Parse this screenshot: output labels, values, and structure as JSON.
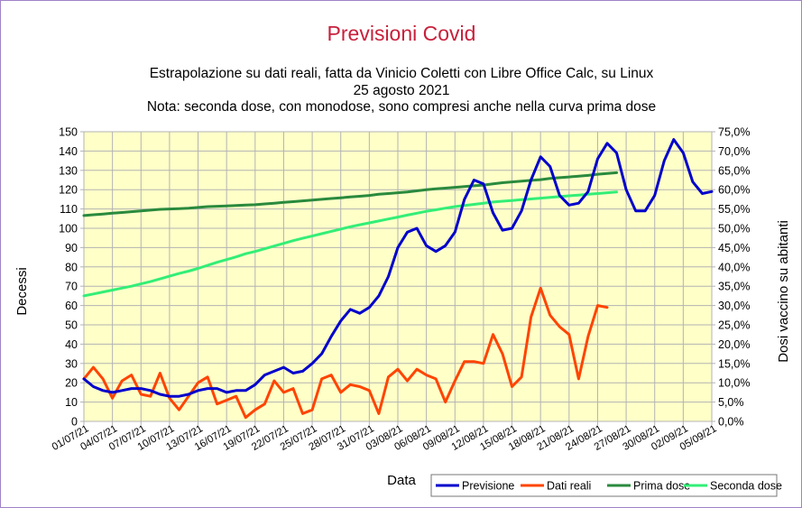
{
  "chart_data": {
    "type": "line",
    "title": "Previsioni Covid",
    "subtitle_lines": [
      "Estrapolazione su dati reali, fatta da Vinicio Coletti con Libre Office Calc, su Linux",
      "25 agosto 2021",
      "Nota: seconda dose, con monodose, sono compresi anche nella curva prima dose"
    ],
    "xlabel": "Data",
    "ylabel": "Decessi",
    "y2label": "Dosi vaccino su abitanti",
    "ylim": [
      0,
      150
    ],
    "y2lim": [
      0,
      75
    ],
    "yticks": [
      "0",
      "10",
      "20",
      "30",
      "40",
      "50",
      "60",
      "70",
      "80",
      "90",
      "100",
      "110",
      "120",
      "130",
      "140",
      "150"
    ],
    "y2ticks": [
      "0,0%",
      "5,0%",
      "10,0%",
      "15,0%",
      "20,0%",
      "25,0%",
      "30,0%",
      "35,0%",
      "40,0%",
      "45,0%",
      "50,0%",
      "55,0%",
      "60,0%",
      "65,0%",
      "70,0%",
      "75,0%"
    ],
    "xticks": [
      "01/07/21",
      "04/07/21",
      "07/07/21",
      "10/07/21",
      "13/07/21",
      "16/07/21",
      "19/07/21",
      "22/07/21",
      "25/07/21",
      "28/07/21",
      "31/07/21",
      "03/08/21",
      "06/08/21",
      "09/08/21",
      "12/08/21",
      "15/08/21",
      "18/08/21",
      "21/08/21",
      "24/08/21",
      "27/08/21",
      "30/08/21",
      "02/09/21",
      "05/09/21"
    ],
    "grid": true,
    "legend_position": "bottom-right",
    "series": [
      {
        "name": "Previsione",
        "color": "#0000cc",
        "axis": "left",
        "values": [
          22,
          18,
          16,
          15,
          16,
          17,
          17,
          16,
          14,
          13,
          13,
          14,
          16,
          17,
          17,
          15,
          16,
          16,
          19,
          24,
          26,
          28,
          25,
          26,
          30,
          35,
          44,
          52,
          58,
          56,
          59,
          65,
          75,
          90,
          98,
          100,
          91,
          88,
          91,
          98,
          115,
          125,
          123,
          108,
          99,
          100,
          109,
          125,
          137,
          132,
          117,
          112,
          113,
          119,
          136,
          144,
          139,
          120,
          109,
          109,
          117,
          135,
          146,
          139,
          124,
          118,
          119
        ]
      },
      {
        "name": "Dati reali",
        "color": "#ff4400",
        "axis": "left",
        "values": [
          22,
          28,
          22,
          12,
          21,
          24,
          14,
          13,
          25,
          12,
          6,
          13,
          20,
          23,
          9,
          11,
          13,
          2,
          6,
          9,
          21,
          15,
          17,
          4,
          6,
          22,
          24,
          15,
          19,
          18,
          16,
          4,
          23,
          27,
          21,
          27,
          24,
          22,
          10,
          21,
          31,
          31,
          30,
          45,
          35,
          18,
          23,
          54,
          69,
          55,
          49,
          45,
          22,
          44,
          60,
          59
        ]
      },
      {
        "name": "Prima dose",
        "color": "#2a8a3e",
        "axis": "right",
        "values": [
          53.3,
          53.5,
          53.7,
          53.9,
          54.1,
          54.3,
          54.5,
          54.7,
          54.9,
          55.0,
          55.1,
          55.2,
          55.4,
          55.6,
          55.7,
          55.8,
          55.9,
          56.0,
          56.1,
          56.3,
          56.5,
          56.7,
          56.9,
          57.1,
          57.3,
          57.5,
          57.7,
          57.9,
          58.1,
          58.3,
          58.5,
          58.8,
          59.0,
          59.2,
          59.4,
          59.7,
          60.0,
          60.2,
          60.4,
          60.6,
          60.8,
          61.0,
          61.2,
          61.5,
          61.8,
          62.0,
          62.2,
          62.4,
          62.6,
          62.9,
          63.1,
          63.3,
          63.5,
          63.7,
          64.0,
          64.2,
          64.4
        ]
      },
      {
        "name": "Seconda dose",
        "color": "#33ee77",
        "axis": "right",
        "values": [
          32.5,
          33.0,
          33.5,
          34.0,
          34.5,
          35.0,
          35.6,
          36.2,
          36.9,
          37.6,
          38.3,
          38.9,
          39.6,
          40.4,
          41.2,
          41.9,
          42.6,
          43.4,
          44.0,
          44.7,
          45.4,
          46.1,
          46.8,
          47.4,
          48.0,
          48.6,
          49.2,
          49.8,
          50.4,
          50.9,
          51.4,
          51.9,
          52.4,
          52.9,
          53.4,
          53.9,
          54.4,
          54.8,
          55.2,
          55.6,
          55.9,
          56.2,
          56.5,
          56.8,
          57.0,
          57.2,
          57.4,
          57.6,
          57.8,
          58.0,
          58.2,
          58.4,
          58.6,
          58.8,
          59.0,
          59.2,
          59.4
        ]
      }
    ]
  }
}
